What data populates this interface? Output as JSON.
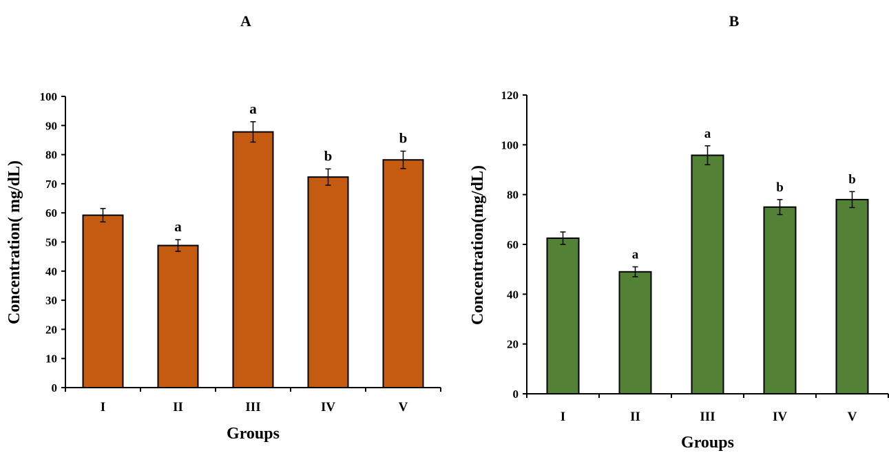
{
  "chart_data": [
    {
      "type": "bar",
      "panel": "A",
      "categories": [
        "I",
        "II",
        "III",
        "IV",
        "V"
      ],
      "values": [
        59.2,
        48.8,
        87.8,
        72.3,
        78.2
      ],
      "errors": [
        2.3,
        2.0,
        3.5,
        2.8,
        3.0
      ],
      "significance": [
        "",
        "a",
        "a",
        "b",
        "b"
      ],
      "xlabel": "Groups",
      "ylabel": "Concentration( mg/dL)",
      "ylim": [
        0,
        100
      ],
      "yticks": [
        0,
        10,
        20,
        30,
        40,
        50,
        60,
        70,
        80,
        90,
        100
      ],
      "bar_color": "#c55a11",
      "grid": false
    },
    {
      "type": "bar",
      "panel": "B",
      "categories": [
        "I",
        "II",
        "III",
        "IV",
        "V"
      ],
      "values": [
        62.5,
        49.0,
        95.8,
        75.0,
        78.0
      ],
      "errors": [
        2.5,
        2.0,
        3.8,
        3.0,
        3.2
      ],
      "significance": [
        "",
        "a",
        "a",
        "b",
        "b"
      ],
      "xlabel": "Groups",
      "ylabel": "Concentration(mg/dL)",
      "ylim": [
        0,
        120
      ],
      "yticks": [
        0,
        20,
        40,
        60,
        80,
        100,
        120
      ],
      "bar_color": "#538135",
      "grid": false
    }
  ]
}
